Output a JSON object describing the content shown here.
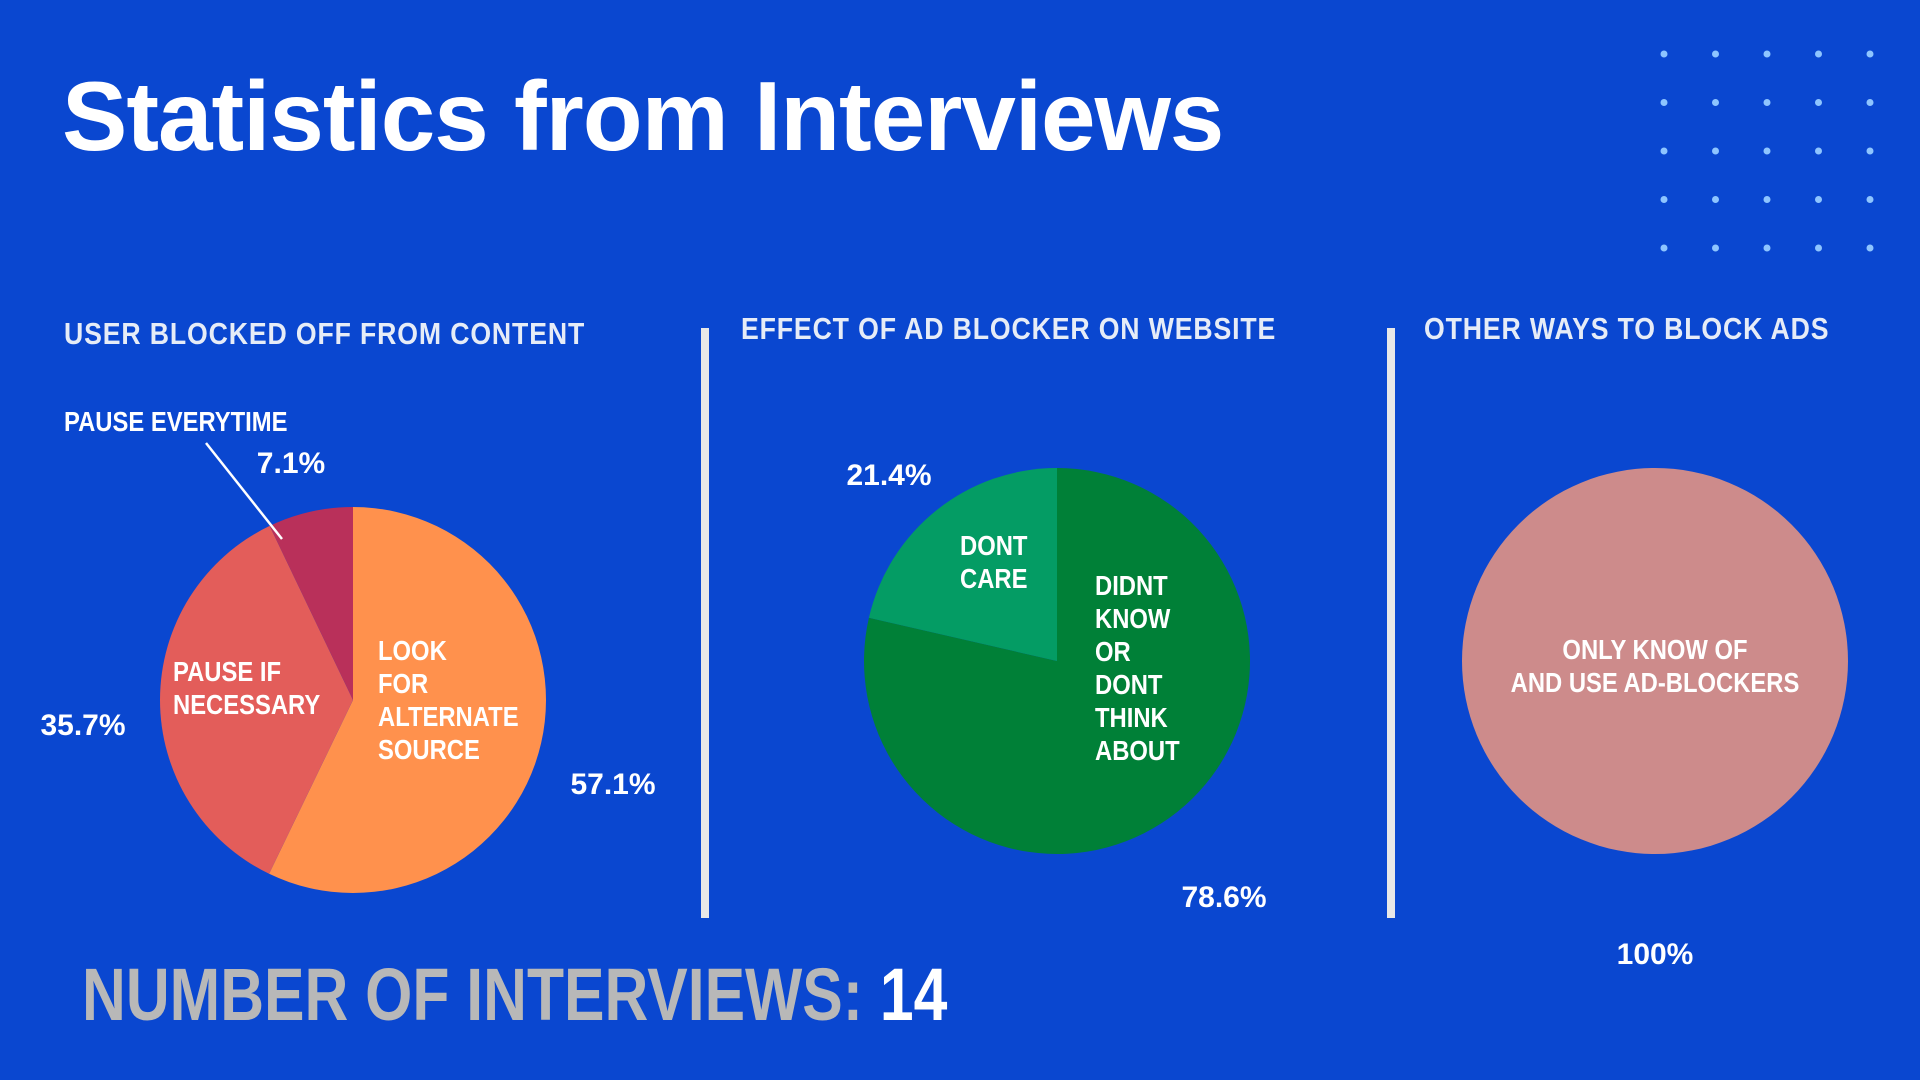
{
  "title": "Statistics from Interviews",
  "chart_data": [
    {
      "type": "pie",
      "title": "USER BLOCKED OFF FROM CONTENT",
      "categories": [
        "LOOK\nFOR\nALTERNATE\nSOURCE",
        "PAUSE IF\nNECESSARY",
        "PAUSE EVERYTIME"
      ],
      "values": [
        57.1,
        35.7,
        7.1
      ],
      "value_labels": [
        "57.1%",
        "35.7%",
        "7.1%"
      ],
      "colors": [
        "#ff914d",
        "#e35d5a",
        "#b9305a"
      ]
    },
    {
      "type": "pie",
      "title": "EFFECT OF AD BLOCKER ON WEBSITE",
      "categories": [
        "DIDNT\nKNOW\nOR\nDONT\nTHINK\nABOUT",
        "DONT\nCARE"
      ],
      "values": [
        78.6,
        21.4
      ],
      "value_labels": [
        "78.6%",
        "21.4%"
      ],
      "colors": [
        "#008037",
        "#049c64"
      ]
    },
    {
      "type": "pie",
      "title": "OTHER WAYS TO BLOCK ADS",
      "categories": [
        "ONLY KNOW OF\nAND USE AD-BLOCKERS"
      ],
      "values": [
        100
      ],
      "value_labels": [
        "100%"
      ],
      "colors": [
        "#cd8b8b"
      ]
    }
  ],
  "footer": {
    "label": "NUMBER OF INTERVIEWS:",
    "value": 14
  }
}
